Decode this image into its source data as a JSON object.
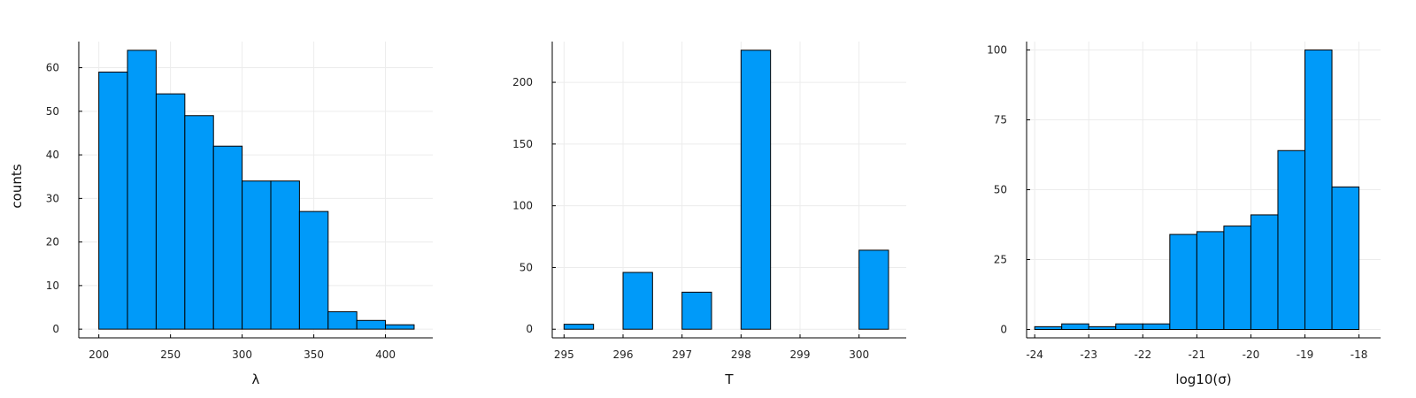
{
  "colors": {
    "bar_fill": "#009af9",
    "bar_stroke": "#000000",
    "grid": "#ececec"
  },
  "chart_data": [
    {
      "type": "bar",
      "xlabel": "λ",
      "ylabel": "counts",
      "xlim": [
        186,
        433
      ],
      "ylim": [
        -2,
        66
      ],
      "xticks": [
        "200",
        "250",
        "300",
        "350",
        "400"
      ],
      "yticks": [
        "0",
        "10",
        "20",
        "30",
        "40",
        "50",
        "60"
      ],
      "grid": true,
      "bins": [
        {
          "x0": 200,
          "x1": 220,
          "value": 59
        },
        {
          "x0": 220,
          "x1": 240,
          "value": 64
        },
        {
          "x0": 240,
          "x1": 260,
          "value": 54
        },
        {
          "x0": 260,
          "x1": 280,
          "value": 49
        },
        {
          "x0": 280,
          "x1": 300,
          "value": 42
        },
        {
          "x0": 300,
          "x1": 320,
          "value": 34
        },
        {
          "x0": 320,
          "x1": 340,
          "value": 34
        },
        {
          "x0": 340,
          "x1": 360,
          "value": 27
        },
        {
          "x0": 360,
          "x1": 380,
          "value": 4
        },
        {
          "x0": 380,
          "x1": 400,
          "value": 2
        },
        {
          "x0": 400,
          "x1": 420,
          "value": 1
        }
      ]
    },
    {
      "type": "bar",
      "xlabel": "T",
      "ylabel": "",
      "xlim": [
        294.8,
        300.8
      ],
      "ylim": [
        -7,
        233
      ],
      "xticks": [
        "295",
        "296",
        "297",
        "298",
        "299",
        "300"
      ],
      "yticks": [
        "0",
        "50",
        "100",
        "150",
        "200"
      ],
      "grid": true,
      "bins": [
        {
          "x0": 295.0,
          "x1": 295.5,
          "value": 4
        },
        {
          "x0": 295.5,
          "x1": 296.0,
          "value": 0
        },
        {
          "x0": 296.0,
          "x1": 296.5,
          "value": 46
        },
        {
          "x0": 296.5,
          "x1": 297.0,
          "value": 0
        },
        {
          "x0": 297.0,
          "x1": 297.5,
          "value": 30
        },
        {
          "x0": 297.5,
          "x1": 298.0,
          "value": 0
        },
        {
          "x0": 298.0,
          "x1": 298.5,
          "value": 226
        },
        {
          "x0": 298.5,
          "x1": 299.0,
          "value": 0
        },
        {
          "x0": 299.0,
          "x1": 299.5,
          "value": 0
        },
        {
          "x0": 299.5,
          "x1": 300.0,
          "value": 0
        },
        {
          "x0": 300.0,
          "x1": 300.5,
          "value": 64
        }
      ]
    },
    {
      "type": "bar",
      "xlabel": "log10(σ)",
      "ylabel": "",
      "xlim": [
        -24.15,
        -17.6
      ],
      "ylim": [
        -3,
        103
      ],
      "xticks": [
        "-24",
        "-23",
        "-22",
        "-21",
        "-20",
        "-19",
        "-18"
      ],
      "yticks": [
        "0",
        "25",
        "50",
        "75",
        "100"
      ],
      "grid": true,
      "bins": [
        {
          "x0": -24.0,
          "x1": -23.5,
          "value": 1
        },
        {
          "x0": -23.5,
          "x1": -23.0,
          "value": 2
        },
        {
          "x0": -23.0,
          "x1": -22.5,
          "value": 1
        },
        {
          "x0": -22.5,
          "x1": -22.0,
          "value": 2
        },
        {
          "x0": -22.0,
          "x1": -21.5,
          "value": 2
        },
        {
          "x0": -21.5,
          "x1": -21.0,
          "value": 34
        },
        {
          "x0": -21.0,
          "x1": -20.5,
          "value": 35
        },
        {
          "x0": -20.5,
          "x1": -20.0,
          "value": 37
        },
        {
          "x0": -20.0,
          "x1": -19.5,
          "value": 41
        },
        {
          "x0": -19.5,
          "x1": -19.0,
          "value": 64
        },
        {
          "x0": -19.0,
          "x1": -18.5,
          "value": 100
        },
        {
          "x0": -18.5,
          "x1": -18.0,
          "value": 51
        }
      ]
    }
  ]
}
